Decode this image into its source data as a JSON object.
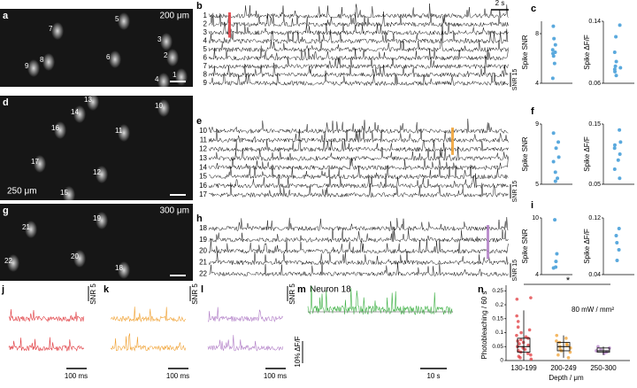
{
  "panels": {
    "a": {
      "label": "a",
      "scale_bar": "200 μm",
      "neurons": [
        "1",
        "2",
        "3",
        "4",
        "5",
        "6",
        "7",
        "8",
        "9"
      ]
    },
    "b": {
      "label": "b",
      "time_bar": "2 s",
      "snr_bar": "SNR 15",
      "rows": [
        "1",
        "2",
        "3",
        "4",
        "5",
        "6",
        "7",
        "8",
        "9"
      ]
    },
    "c": {
      "label": "c",
      "plots": [
        {
          "ylabel": "Spike SNR",
          "ylim": [
            4,
            9
          ],
          "yticks": [
            4,
            8
          ],
          "color": "#5aa9dd",
          "values": [
            8.6,
            7.6,
            7.1,
            6.7,
            6.5,
            6.4,
            6.2,
            5.6,
            4.4
          ]
        },
        {
          "ylabel": "Spike ΔF/F",
          "ylim": [
            0.06,
            0.14
          ],
          "yticks": [
            0.06,
            0.14
          ],
          "color": "#5aa9dd",
          "values": [
            0.135,
            0.12,
            0.1,
            0.088,
            0.082,
            0.08,
            0.078,
            0.075,
            0.07
          ]
        }
      ]
    },
    "d": {
      "label": "d",
      "scale_bar": "250 μm",
      "neurons": [
        "10",
        "11",
        "12",
        "13",
        "14",
        "15",
        "16",
        "17"
      ]
    },
    "e": {
      "label": "e",
      "snr_bar": "SNR 15",
      "rows": [
        "10",
        "11",
        "12",
        "13",
        "14",
        "15",
        "16",
        "17"
      ]
    },
    "f": {
      "label": "f",
      "plots": [
        {
          "ylabel": "Spike SNR",
          "ylim": [
            5,
            9
          ],
          "yticks": [
            5,
            9
          ],
          "color": "#5aa9dd",
          "values": [
            8.4,
            7.8,
            7.4,
            6.8,
            6.5,
            5.8,
            5.4,
            5.2
          ]
        },
        {
          "ylabel": "Spike ΔF/F",
          "ylim": [
            0.05,
            0.15
          ],
          "yticks": [
            0.05,
            0.15
          ],
          "color": "#5aa9dd",
          "values": [
            0.14,
            0.12,
            0.115,
            0.11,
            0.1,
            0.09,
            0.075,
            0.06
          ]
        }
      ]
    },
    "g": {
      "label": "g",
      "scale_bar": "300 μm",
      "neurons": [
        "18",
        "19",
        "20",
        "21",
        "22"
      ]
    },
    "h": {
      "label": "h",
      "snr_bar": "SNR 15",
      "rows": [
        "18",
        "19",
        "20",
        "21",
        "22"
      ]
    },
    "i": {
      "label": "i",
      "plots": [
        {
          "ylabel": "Spike SNR",
          "ylim": [
            4,
            10
          ],
          "yticks": [
            4,
            10
          ],
          "color": "#5aa9dd",
          "values": [
            9.8,
            6.2,
            5.4,
            4.8,
            4.7
          ]
        },
        {
          "ylabel": "Spike ΔF/F",
          "ylim": [
            0.04,
            0.12
          ],
          "yticks": [
            0.04,
            0.12
          ],
          "color": "#5aa9dd",
          "values": [
            0.105,
            0.095,
            0.085,
            0.075,
            0.06
          ]
        }
      ]
    },
    "j": {
      "label": "j",
      "snr_bar": "SNR 5",
      "time_bar": "100 ms"
    },
    "k": {
      "label": "k",
      "snr_bar": "SNR 5",
      "time_bar": "100 ms"
    },
    "l": {
      "label": "l",
      "snr_bar": "SNR 5",
      "time_bar": "100 ms"
    },
    "m": {
      "label": "m",
      "title": "Neuron 18",
      "amp_bar": "10% ΔF/F",
      "time_bar": "10 s"
    },
    "n": {
      "label": "n",
      "ylabel": "Photobleaching / 60 s",
      "xlabel": "Depth / μm",
      "note": "80 mW / mm²",
      "significance": "*",
      "ylim": [
        0,
        0.27
      ],
      "yticks": [
        0,
        0.05,
        0.1,
        0.15,
        0.2,
        0.25
      ],
      "groups": [
        {
          "name": "130-199",
          "color": "#e0393e",
          "box": [
            0.0,
            0.03,
            0.05,
            0.08,
            0.18
          ],
          "points": [
            0.225,
            0.22,
            0.16,
            0.14,
            0.12,
            0.11,
            0.1,
            0.09,
            0.085,
            0.08,
            0.075,
            0.07,
            0.065,
            0.06,
            0.055,
            0.05,
            0.045,
            0.04,
            0.035,
            0.03,
            0.025,
            0.02,
            0.015,
            0.01,
            0.005
          ]
        },
        {
          "name": "200-249",
          "color": "#f0a030",
          "box": [
            0.01,
            0.035,
            0.05,
            0.065,
            0.09
          ],
          "points": [
            0.09,
            0.08,
            0.07,
            0.065,
            0.06,
            0.055,
            0.05,
            0.045,
            0.04,
            0.035,
            0.03,
            0.02,
            0.01
          ]
        },
        {
          "name": "250-300",
          "color": "#b07cc6",
          "box": [
            0.02,
            0.03,
            0.035,
            0.045,
            0.05
          ],
          "points": [
            0.05,
            0.045,
            0.04,
            0.035,
            0.03,
            0.025
          ]
        }
      ]
    }
  }
}
